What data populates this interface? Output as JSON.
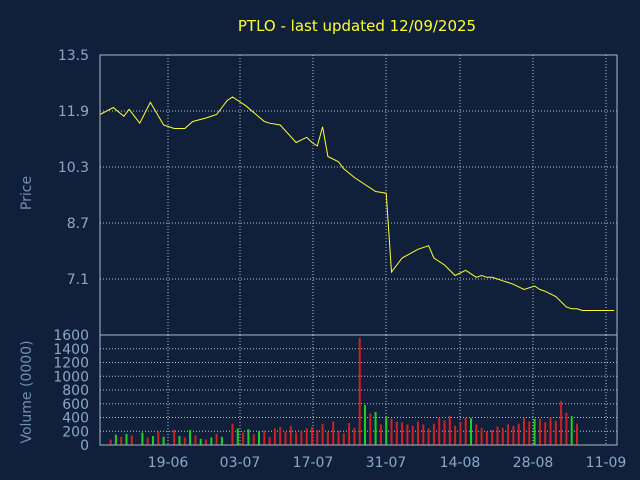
{
  "chart_data": [
    {
      "type": "line",
      "title": "PTLO - last updated 12/09/2025",
      "ylabel": "Price",
      "ylim": [
        5.5,
        13.5
      ],
      "yticks": [
        13.5,
        11.9,
        10.3,
        8.7,
        7.1
      ],
      "ytick_labels": [
        "13.5",
        "11.9",
        "10.3",
        "8.7",
        "7.1"
      ],
      "grid": true,
      "color": "#ffff33",
      "series": [
        {
          "x": [
            0,
            2.5,
            4.5,
            5.5,
            7.5,
            9.5,
            12,
            14,
            16,
            17.5,
            20,
            22,
            24,
            25,
            26,
            27.5,
            31,
            32,
            34,
            37,
            39,
            40,
            41,
            42,
            43,
            45,
            46,
            48,
            52,
            54,
            55,
            57,
            60,
            62,
            63,
            64,
            65,
            67,
            69,
            70,
            71,
            72,
            73,
            74,
            75,
            76,
            77,
            78,
            80,
            82,
            83,
            84,
            86,
            88,
            89,
            90,
            91,
            92,
            93,
            94,
            95,
            96,
            97
          ],
          "values": [
            11.8,
            12.0,
            11.75,
            11.95,
            11.55,
            12.15,
            11.5,
            11.4,
            11.4,
            11.6,
            11.7,
            11.8,
            12.2,
            12.3,
            12.2,
            12.05,
            11.6,
            11.55,
            11.5,
            11.0,
            11.15,
            11.0,
            10.9,
            11.45,
            10.6,
            10.45,
            10.25,
            10.0,
            9.6,
            9.55,
            7.3,
            7.7,
            7.95,
            8.05,
            7.7,
            7.6,
            7.5,
            7.2,
            7.35,
            7.25,
            7.15,
            7.2,
            7.15,
            7.15,
            7.1,
            7.05,
            7.0,
            6.95,
            6.8,
            6.9,
            6.8,
            6.75,
            6.6,
            6.3,
            6.25,
            6.25,
            6.2,
            6.2,
            6.2,
            6.2,
            6.2,
            6.2,
            6.2
          ]
        }
      ]
    },
    {
      "type": "bar",
      "ylabel": "Volume (0000)",
      "ylim": [
        0,
        1600
      ],
      "yticks": [
        0,
        200,
        400,
        600,
        800,
        1000,
        1200,
        1400,
        1600
      ],
      "ytick_labels": [
        "0",
        "200",
        "400",
        "600",
        "800",
        "1000",
        "1200",
        "1400",
        "1600"
      ],
      "categories": [
        "19-06",
        "03-07",
        "17-07",
        "31-07",
        "14-08",
        "28-08",
        "11-09"
      ],
      "grid": true,
      "up_color": "#22cc22",
      "down_color": "#cc2222",
      "series": [
        {
          "x": [
            2,
            3,
            4,
            5,
            6,
            8,
            9,
            10,
            11,
            12,
            14,
            15,
            16,
            17,
            18,
            19,
            20,
            21,
            22,
            23,
            25,
            26,
            27,
            28,
            29,
            30,
            31,
            32,
            33,
            34,
            35,
            36,
            37,
            38,
            39,
            40,
            41,
            42,
            43,
            44,
            45,
            46,
            47,
            48,
            49,
            50,
            51,
            52,
            53,
            54,
            55,
            56,
            57,
            58,
            59,
            60,
            61,
            62,
            63,
            64,
            65,
            66,
            67,
            68,
            69,
            70,
            71,
            72,
            73,
            74,
            75,
            76,
            77,
            78,
            79,
            80,
            81,
            82,
            83,
            84,
            85,
            86,
            87,
            88,
            89,
            90
          ],
          "values": [
            80,
            150,
            120,
            160,
            140,
            180,
            110,
            130,
            200,
            120,
            220,
            130,
            110,
            220,
            140,
            90,
            80,
            110,
            160,
            120,
            310,
            240,
            180,
            230,
            160,
            200,
            210,
            120,
            240,
            260,
            190,
            280,
            180,
            210,
            240,
            260,
            220,
            310,
            190,
            340,
            210,
            170,
            320,
            250,
            1560,
            580,
            460,
            480,
            300,
            410,
            380,
            340,
            330,
            300,
            280,
            340,
            300,
            240,
            310,
            400,
            360,
            420,
            280,
            330,
            400,
            390,
            300,
            250,
            200,
            220,
            270,
            250,
            300,
            280,
            310,
            400,
            340,
            380,
            380,
            330,
            400,
            350,
            640,
            470,
            420,
            310
          ],
          "up": [
            0,
            1,
            0,
            1,
            0,
            1,
            0,
            1,
            0,
            1,
            0,
            1,
            0,
            1,
            0,
            1,
            0,
            1,
            0,
            1,
            0,
            1,
            0,
            1,
            0,
            1,
            0,
            0,
            0,
            0,
            0,
            0,
            0,
            0,
            0,
            0,
            0,
            0,
            0,
            0,
            0,
            0,
            0,
            0,
            0,
            1,
            0,
            1,
            0,
            1,
            0,
            0,
            0,
            0,
            0,
            0,
            0,
            0,
            0,
            0,
            0,
            0,
            0,
            0,
            0,
            1,
            0,
            0,
            0,
            0,
            0,
            0,
            0,
            0,
            0,
            0,
            0,
            1,
            0,
            0,
            0,
            0,
            0,
            0,
            1,
            0
          ]
        }
      ]
    }
  ]
}
